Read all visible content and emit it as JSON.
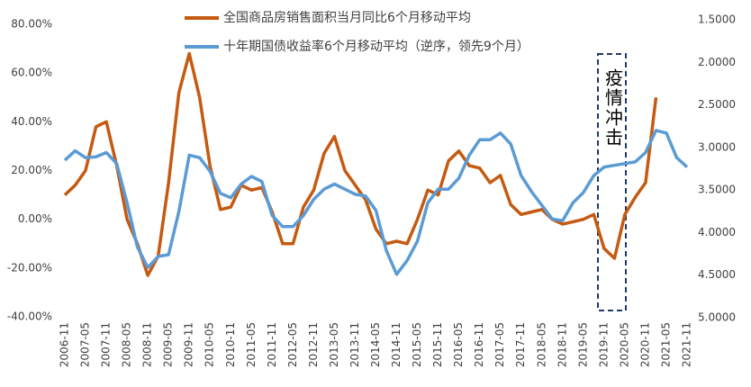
{
  "chart_data": {
    "type": "line",
    "categories": [
      "2006-11",
      null,
      "2007-05",
      null,
      "2007-11",
      null,
      "2008-05",
      null,
      "2008-11",
      null,
      "2009-05",
      null,
      "2009-11",
      null,
      "2010-05",
      null,
      "2010-11",
      null,
      "2011-05",
      null,
      "2011-11",
      null,
      "2012-05",
      null,
      "2012-11",
      null,
      "2013-05",
      null,
      "2013-11",
      null,
      "2014-05",
      null,
      "2014-11",
      null,
      "2015-05",
      null,
      "2015-11",
      null,
      "2016-05",
      null,
      "2016-11",
      null,
      "2017-05",
      null,
      "2017-11",
      null,
      "2018-05",
      null,
      "2018-11",
      null,
      "2019-05",
      null,
      "2019-11",
      null,
      "2020-05",
      null,
      "2020-11",
      null,
      "2021-05",
      null,
      "2021-11"
    ],
    "series": [
      {
        "name": "全国商品房销售面积当月同比6个月移动平均",
        "color": "#c55a11",
        "axis": "y",
        "values": [
          10,
          14,
          20,
          38,
          40,
          22,
          0,
          -10,
          -23,
          -15,
          15,
          52,
          68,
          50,
          22,
          4,
          5,
          14,
          12,
          13,
          3,
          -10,
          -10,
          5,
          12,
          27,
          34,
          20,
          14,
          8,
          -4,
          -10,
          -9,
          -10,
          0,
          12,
          10,
          24,
          28,
          22,
          21,
          15,
          18,
          6,
          2,
          3,
          4,
          0,
          -2,
          -1,
          0,
          2,
          -12,
          -16,
          2,
          9,
          15,
          50,
          null,
          null,
          null
        ]
      },
      {
        "name": "十年期国债收益率6个月移动平均（逆序，领先9个月）",
        "color": "#5b9bd5",
        "axis": "y2",
        "values": [
          3.15,
          3.04,
          3.12,
          3.11,
          3.06,
          3.19,
          3.65,
          4.17,
          4.41,
          4.28,
          4.26,
          3.75,
          3.09,
          3.12,
          3.28,
          3.54,
          3.59,
          3.43,
          3.34,
          3.4,
          3.8,
          3.93,
          3.93,
          3.8,
          3.61,
          3.49,
          3.43,
          3.49,
          3.55,
          3.57,
          3.74,
          4.21,
          4.49,
          4.33,
          4.1,
          3.65,
          3.49,
          3.49,
          3.36,
          3.09,
          2.91,
          2.91,
          2.83,
          2.96,
          3.33,
          3.52,
          3.68,
          3.84,
          3.86,
          3.65,
          3.53,
          3.33,
          3.23,
          3.21,
          3.19,
          3.17,
          3.06,
          2.8,
          2.83,
          3.12,
          3.23
        ]
      }
    ],
    "ylim": [
      -40,
      80
    ],
    "yticks": [
      {
        "value": -40,
        "label": "-40.00%"
      },
      {
        "value": -20,
        "label": "-20.00%"
      },
      {
        "value": 0,
        "label": "0.00%"
      },
      {
        "value": 20,
        "label": "20.00%"
      },
      {
        "value": 40,
        "label": "40.00%"
      },
      {
        "value": 60,
        "label": "60.00%"
      },
      {
        "value": 80,
        "label": "80.00%"
      }
    ],
    "y2lim": [
      5,
      1.5
    ],
    "y2ticks": [
      {
        "value": 5,
        "label": "5.0000"
      },
      {
        "value": 4.5,
        "label": "4.5000"
      },
      {
        "value": 4,
        "label": "4.0000"
      },
      {
        "value": 3.5,
        "label": "3.5000"
      },
      {
        "value": 3,
        "label": "3.0000"
      },
      {
        "value": 2.5,
        "label": "2.5000"
      },
      {
        "value": 2,
        "label": "2.0000"
      },
      {
        "value": 1.5,
        "label": "1.5000"
      }
    ],
    "annotation": "疫情冲击",
    "legend": "top",
    "grid": false
  }
}
